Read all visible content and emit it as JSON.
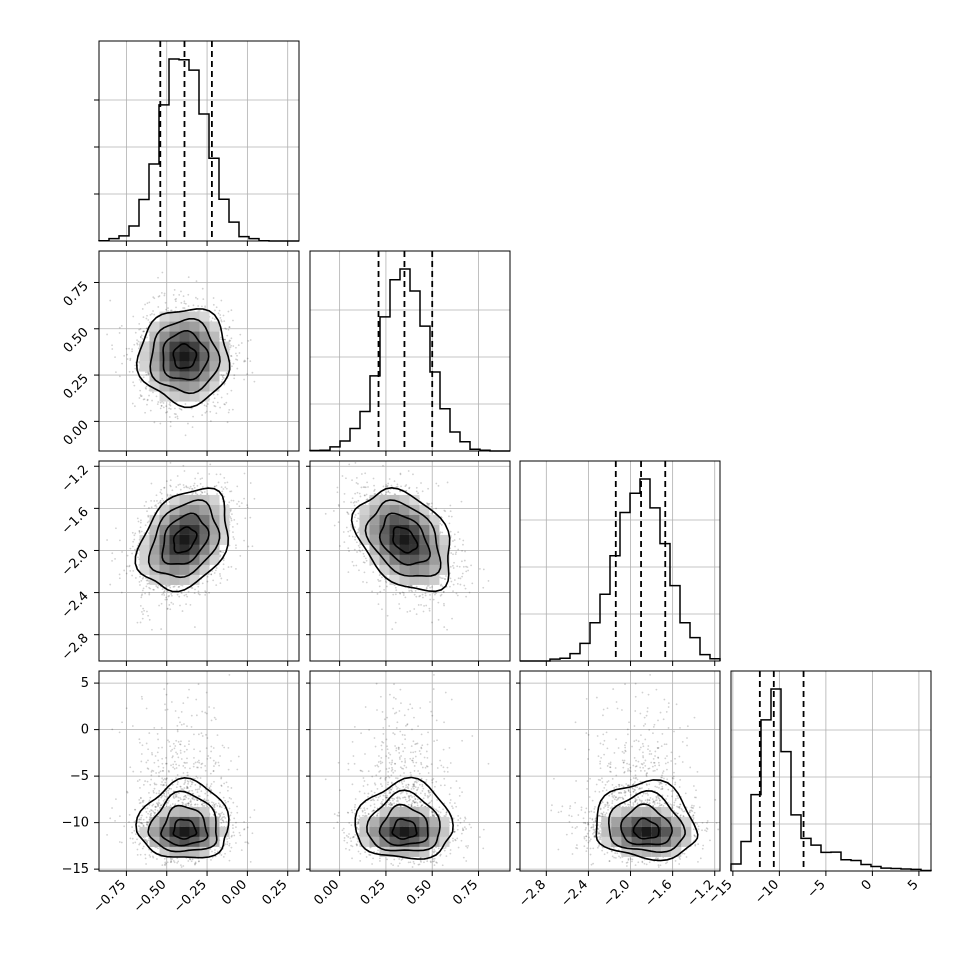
{
  "chart_data": {
    "type": "corner",
    "parameters": [
      {
        "range": [
          -0.92,
          0.32
        ],
        "ticks": [
          -0.75,
          -0.5,
          -0.25,
          0.0,
          0.25
        ],
        "tick_labels": [
          "−0.75",
          "−0.50",
          "−0.25",
          "0.00",
          "0.25"
        ]
      },
      {
        "range": [
          -0.16,
          0.92
        ],
        "ticks": [
          0.0,
          0.25,
          0.5,
          0.75
        ],
        "tick_labels": [
          "0.00",
          "0.25",
          "0.50",
          "0.75"
        ]
      },
      {
        "range": [
          -3.05,
          -1.15
        ],
        "ticks": [
          -2.8,
          -2.4,
          -2.0,
          -1.6,
          -1.2
        ],
        "tick_labels": [
          "−2.8",
          "−2.4",
          "−2.0",
          "−1.6",
          "−1.2"
        ]
      },
      {
        "range": [
          -15.2,
          6.3
        ],
        "ticks": [
          -15,
          -10,
          -5,
          0,
          5
        ],
        "tick_labels": [
          "−15",
          "−10",
          "−5",
          "0",
          "5"
        ]
      }
    ],
    "marginals": [
      {
        "mean": -0.39,
        "sd": 0.14,
        "quantiles": [
          -0.54,
          -0.39,
          -0.22
        ]
      },
      {
        "mean": 0.35,
        "sd": 0.13,
        "quantiles": [
          0.21,
          0.35,
          0.5
        ]
      },
      {
        "mean": -1.9,
        "sd": 0.24,
        "quantiles": [
          -2.14,
          -1.9,
          -1.67
        ]
      },
      {
        "mean": -10.8,
        "sd": 1.6,
        "skew_tail": 3.2,
        "quantiles": [
          -12.1,
          -10.6,
          -7.4
        ]
      }
    ],
    "pairs": [
      {
        "x": 0,
        "y": 1,
        "center": [
          -0.39,
          0.35
        ],
        "rho": 0.0
      },
      {
        "x": 0,
        "y": 2,
        "center": [
          -0.39,
          -1.9
        ],
        "rho": 0.3
      },
      {
        "x": 1,
        "y": 2,
        "center": [
          0.35,
          -1.9
        ],
        "rho": -0.35
      },
      {
        "x": 0,
        "y": 3,
        "center": [
          -0.39,
          -11.0
        ],
        "rho": 0.0
      },
      {
        "x": 1,
        "y": 3,
        "center": [
          0.35,
          -11.0
        ],
        "rho": 0.0
      },
      {
        "x": 2,
        "y": 3,
        "center": [
          -1.85,
          -11.0
        ],
        "rho": -0.1
      }
    ],
    "grid": true,
    "histogram_style": "step",
    "quantile_line_style": "dashed",
    "density_colors": [
      "#ffffff",
      "#000000"
    ]
  }
}
